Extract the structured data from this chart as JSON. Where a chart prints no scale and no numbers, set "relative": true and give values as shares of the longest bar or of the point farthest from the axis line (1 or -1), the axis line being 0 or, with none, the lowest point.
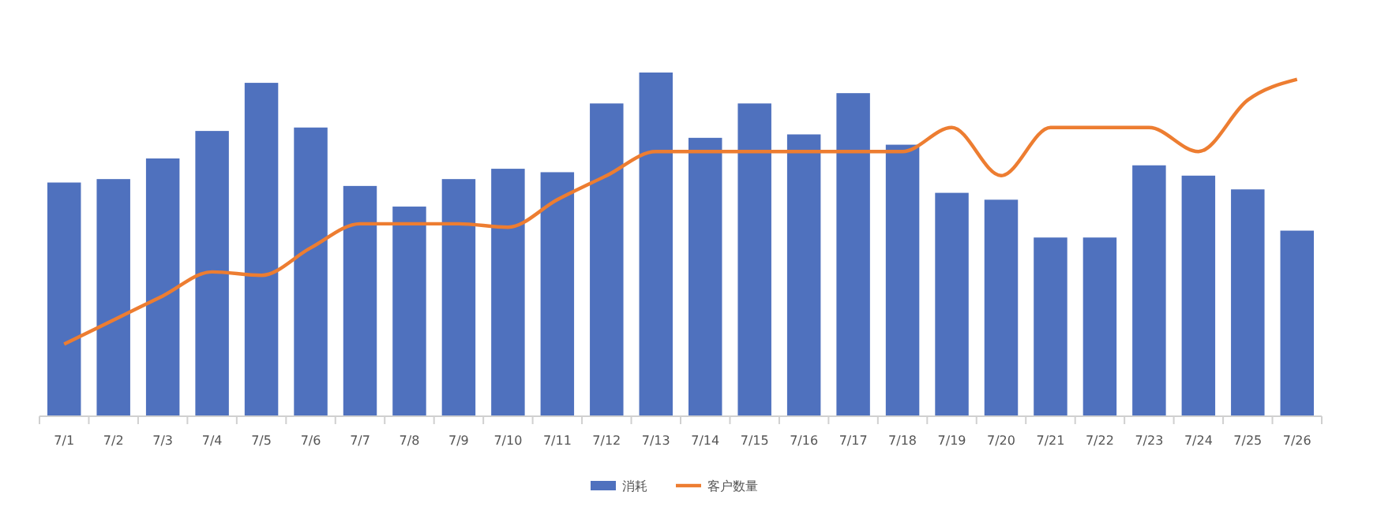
{
  "chart_data": {
    "type": "bar",
    "relative": true,
    "categories": [
      "7/1",
      "7/2",
      "7/3",
      "7/4",
      "7/5",
      "7/6",
      "7/7",
      "7/8",
      "7/9",
      "7/10",
      "7/11",
      "7/12",
      "7/13",
      "7/14",
      "7/15",
      "7/16",
      "7/17",
      "7/18",
      "7/19",
      "7/20",
      "7/21",
      "7/22",
      "7/23",
      "7/24",
      "7/25",
      "7/26"
    ],
    "series": [
      {
        "name": "消耗",
        "color": "#4f71be",
        "values": [
          0.68,
          0.69,
          0.75,
          0.83,
          0.97,
          0.84,
          0.67,
          0.61,
          0.69,
          0.72,
          0.71,
          0.91,
          1,
          0.81,
          0.91,
          0.82,
          0.94,
          0.79,
          0.65,
          0.63,
          0.52,
          0.52,
          0.73,
          0.7,
          0.66,
          0.54
        ]
      },
      {
        "name": "客户数量",
        "type": "line",
        "color": "#ed7d31",
        "values": [
          0.21,
          0.28,
          0.35,
          0.42,
          0.41,
          0.49,
          0.56,
          0.56,
          0.56,
          0.55,
          0.63,
          0.7,
          0.77,
          0.77,
          0.77,
          0.77,
          0.77,
          0.77,
          0.84,
          0.7,
          0.84,
          0.84,
          0.84,
          0.77,
          0.92,
          0.98
        ]
      }
    ],
    "legend": "bottom",
    "marker": "none"
  }
}
